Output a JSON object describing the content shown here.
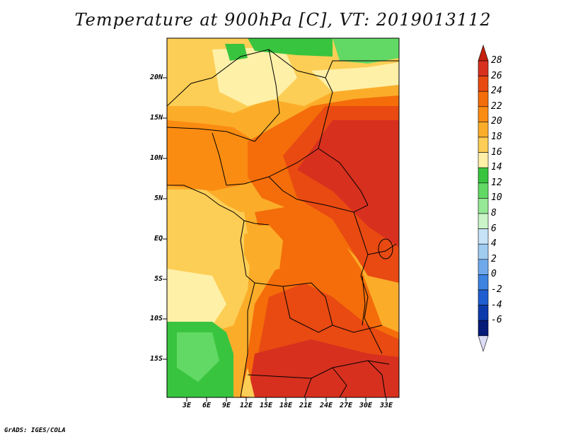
{
  "title": "Temperature at 900hPa [C], VT: 2019013112",
  "credit": "GrADS: IGES/COLA",
  "y_axis_labels": [
    "20N",
    "15N",
    "10N",
    "5N",
    "EQ",
    "5S",
    "10S",
    "15S"
  ],
  "x_axis_labels": [
    "3E",
    "6E",
    "9E",
    "12E",
    "15E",
    "18E",
    "21E",
    "24E",
    "27E",
    "30E",
    "33E"
  ],
  "colorbar": {
    "labels": [
      "28",
      "26",
      "24",
      "22",
      "20",
      "18",
      "16",
      "14",
      "12",
      "10",
      "8",
      "6",
      "4",
      "2",
      "0",
      "-2",
      "-4",
      "-6"
    ],
    "colors": [
      "#d7301f",
      "#e84a12",
      "#f46d0a",
      "#fb8c12",
      "#fbad2a",
      "#fdce55",
      "#fff0a8",
      "#39c43f",
      "#62d964",
      "#95e895",
      "#c9f5c9",
      "#c6e3f8",
      "#a0ccf2",
      "#6fa9ec",
      "#3d83e0",
      "#1f5ed0",
      "#0c3aaa",
      "#061a78"
    ],
    "top_arrow_color": "#c4200c",
    "bottom_arrow_color": "#dcdcf4"
  }
}
